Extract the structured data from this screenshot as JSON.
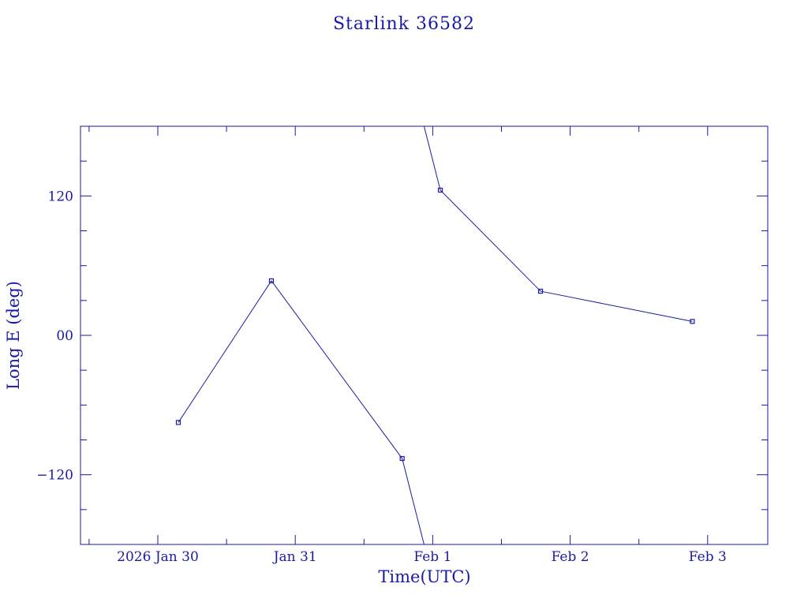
{
  "chart_data": {
    "type": "line",
    "title": "Starlink 36582",
    "xlabel": "Time(UTC)",
    "ylabel": "Long E (deg)",
    "xlim": [
      "2026-01-29T10:30Z",
      "2026-02-03T10:30Z"
    ],
    "ylim": [
      -180,
      180
    ],
    "x_ticks": [
      {
        "value": "2026-01-30T00:00Z",
        "label": "2026 Jan 30"
      },
      {
        "value": "2026-01-31T00:00Z",
        "label": "Jan 31"
      },
      {
        "value": "2026-02-01T00:00Z",
        "label": "Feb  1"
      },
      {
        "value": "2026-02-02T00:00Z",
        "label": "Feb  2"
      },
      {
        "value": "2026-02-03T00:00Z",
        "label": "Feb  3"
      }
    ],
    "y_ticks": [
      {
        "value": 120,
        "label": "120"
      },
      {
        "value": 0,
        "label": "00"
      },
      {
        "value": -120,
        "label": "−120"
      }
    ],
    "grid": false,
    "series": [
      {
        "points": [
          {
            "x": "2026-01-30T03:35Z",
            "y": -75
          },
          {
            "x": "2026-01-30T19:50Z",
            "y": 47
          },
          {
            "x": "2026-01-31T18:40Z",
            "y": -106
          },
          {
            "x": "2026-02-01T01:20Z",
            "y": 125
          },
          {
            "x": "2026-02-01T18:50Z",
            "y": 38
          },
          {
            "x": "2026-02-02T21:20Z",
            "y": 12
          }
        ],
        "wraps_between": [
          [
            2,
            3
          ]
        ]
      }
    ],
    "colors": {
      "line": "#1a1aa6",
      "axis": "#1a1aa6",
      "text": "#1a1aa6",
      "background": "#ffffff"
    }
  }
}
